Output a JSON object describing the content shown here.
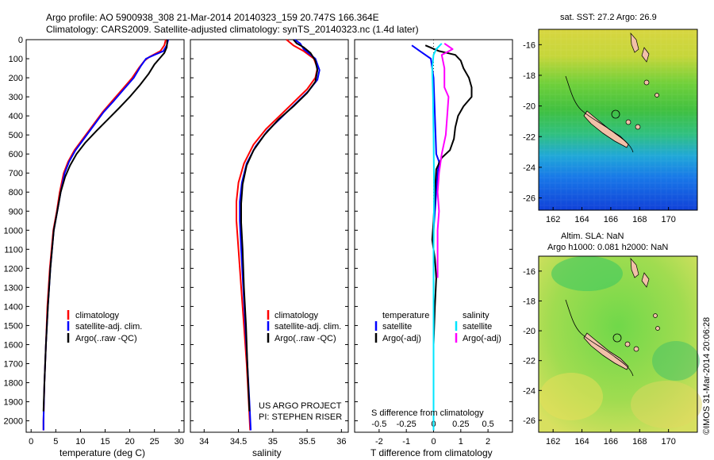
{
  "header": {
    "line1": "Argo profile: AO 5900938_308 21-Mar-2014 20140323_159 20.747S 166.364E",
    "line2": "Climatology: CARS2009. Satellite-adjusted climatology: synTS_20140323.nc (1.4d later)"
  },
  "colors": {
    "climatology": "#ff0000",
    "satellite": "#0000ff",
    "argo": "#000000",
    "cyan": "#00e5ff",
    "magenta": "#ff00ff"
  },
  "depth_ticks": [
    "0",
    "100",
    "200",
    "300",
    "400",
    "500",
    "600",
    "700",
    "800",
    "900",
    "1000",
    "1100",
    "1200",
    "1300",
    "1400",
    "1500",
    "1600",
    "1700",
    "1800",
    "1900",
    "2000"
  ],
  "chart_data": [
    {
      "type": "line",
      "title": "",
      "xlabel": "temperature (deg C)",
      "ylabel": "depth",
      "xlim": [
        -1,
        31
      ],
      "ylim": [
        2060,
        0
      ],
      "x_ticks": [
        "0",
        "5",
        "10",
        "15",
        "20",
        "25",
        "30"
      ],
      "legend": [
        "climatology",
        "satellite-adj. clim.",
        "Argo(..raw -QC)"
      ],
      "series": [
        {
          "name": "climatology",
          "color": "#ff0000",
          "points": [
            [
              27.3,
              0
            ],
            [
              27.0,
              30
            ],
            [
              26.2,
              60
            ],
            [
              24.0,
              90
            ],
            [
              23.0,
              110
            ],
            [
              21.8,
              150
            ],
            [
              20.5,
              200
            ],
            [
              18.5,
              260
            ],
            [
              16.5,
              320
            ],
            [
              14.5,
              380
            ],
            [
              12.5,
              450
            ],
            [
              10.5,
              520
            ],
            [
              8.8,
              580
            ],
            [
              7.5,
              640
            ],
            [
              6.6,
              700
            ],
            [
              5.8,
              800
            ],
            [
              5.2,
              900
            ],
            [
              4.5,
              1000
            ],
            [
              3.8,
              1200
            ],
            [
              3.3,
              1400
            ],
            [
              3.0,
              1600
            ],
            [
              2.7,
              1800
            ],
            [
              2.5,
              2000
            ],
            [
              2.5,
              2050
            ]
          ]
        },
        {
          "name": "satellite-adj. clim.",
          "color": "#0000ff",
          "points": [
            [
              27.8,
              0
            ],
            [
              27.5,
              30
            ],
            [
              26.8,
              60
            ],
            [
              25.0,
              80
            ],
            [
              23.3,
              100
            ],
            [
              22.2,
              140
            ],
            [
              20.8,
              200
            ],
            [
              18.8,
              260
            ],
            [
              16.8,
              320
            ],
            [
              14.7,
              380
            ],
            [
              12.7,
              450
            ],
            [
              10.7,
              520
            ],
            [
              9.0,
              580
            ],
            [
              7.7,
              640
            ],
            [
              6.8,
              700
            ],
            [
              6.0,
              800
            ],
            [
              5.3,
              900
            ],
            [
              4.6,
              1000
            ],
            [
              3.9,
              1200
            ],
            [
              3.4,
              1400
            ],
            [
              3.0,
              1600
            ],
            [
              2.7,
              1800
            ],
            [
              2.5,
              2000
            ],
            [
              2.5,
              2050
            ]
          ]
        },
        {
          "name": "Argo(..raw -QC)",
          "color": "#000000",
          "points": [
            [
              27.6,
              0
            ],
            [
              27.5,
              40
            ],
            [
              27.0,
              70
            ],
            [
              26.0,
              100
            ],
            [
              25.0,
              130
            ],
            [
              23.8,
              180
            ],
            [
              22.0,
              240
            ],
            [
              20.0,
              300
            ],
            [
              17.8,
              360
            ],
            [
              15.5,
              420
            ],
            [
              13.2,
              480
            ],
            [
              11.0,
              540
            ],
            [
              9.2,
              600
            ],
            [
              7.9,
              660
            ],
            [
              6.9,
              720
            ],
            [
              6.0,
              800
            ],
            [
              5.3,
              900
            ],
            [
              4.6,
              1000
            ],
            [
              3.9,
              1200
            ],
            [
              3.4,
              1400
            ],
            [
              3.0,
              1600
            ],
            [
              2.7,
              1800
            ],
            [
              2.5,
              1950
            ]
          ]
        }
      ]
    },
    {
      "type": "line",
      "title": "",
      "xlabel": "salinity",
      "ylabel": "depth",
      "xlim": [
        33.8,
        36.1
      ],
      "ylim": [
        2060,
        0
      ],
      "x_ticks": [
        "34",
        "34.5",
        "35",
        "35.5",
        "36"
      ],
      "legend": [
        "climatology",
        "satellite-adj. clim.",
        "Argo(..raw -QC)"
      ],
      "annotation": [
        "US ARGO PROJECT",
        "PI: STEPHEN RISER"
      ],
      "series": [
        {
          "name": "climatology",
          "color": "#ff0000",
          "points": [
            [
              35.2,
              0
            ],
            [
              35.3,
              30
            ],
            [
              35.45,
              60
            ],
            [
              35.6,
              100
            ],
            [
              35.65,
              150
            ],
            [
              35.62,
              200
            ],
            [
              35.5,
              260
            ],
            [
              35.3,
              330
            ],
            [
              35.1,
              400
            ],
            [
              34.9,
              470
            ],
            [
              34.72,
              550
            ],
            [
              34.58,
              650
            ],
            [
              34.5,
              750
            ],
            [
              34.47,
              850
            ],
            [
              34.47,
              950
            ],
            [
              34.5,
              1100
            ],
            [
              34.54,
              1300
            ],
            [
              34.58,
              1500
            ],
            [
              34.62,
              1700
            ],
            [
              34.65,
              1900
            ],
            [
              34.67,
              2050
            ]
          ]
        },
        {
          "name": "satellite-adj. clim.",
          "color": "#0000ff",
          "points": [
            [
              35.32,
              0
            ],
            [
              35.4,
              20
            ],
            [
              35.45,
              50
            ],
            [
              35.52,
              70
            ],
            [
              35.62,
              100
            ],
            [
              35.68,
              160
            ],
            [
              35.65,
              210
            ],
            [
              35.52,
              270
            ],
            [
              35.32,
              340
            ],
            [
              35.12,
              410
            ],
            [
              34.92,
              480
            ],
            [
              34.75,
              560
            ],
            [
              34.62,
              650
            ],
            [
              34.55,
              750
            ],
            [
              34.52,
              850
            ],
            [
              34.52,
              950
            ],
            [
              34.54,
              1100
            ],
            [
              34.57,
              1300
            ],
            [
              34.6,
              1500
            ],
            [
              34.63,
              1700
            ],
            [
              34.66,
              1900
            ],
            [
              34.68,
              2050
            ]
          ]
        },
        {
          "name": "Argo(..raw -QC)",
          "color": "#000000",
          "points": [
            [
              35.3,
              0
            ],
            [
              35.35,
              20
            ],
            [
              35.45,
              40
            ],
            [
              35.55,
              70
            ],
            [
              35.62,
              110
            ],
            [
              35.65,
              160
            ],
            [
              35.62,
              220
            ],
            [
              35.5,
              280
            ],
            [
              35.3,
              350
            ],
            [
              35.08,
              420
            ],
            [
              34.88,
              500
            ],
            [
              34.72,
              580
            ],
            [
              34.62,
              660
            ],
            [
              34.56,
              760
            ],
            [
              34.54,
              860
            ],
            [
              34.54,
              960
            ],
            [
              34.56,
              1100
            ],
            [
              34.58,
              1300
            ],
            [
              34.61,
              1500
            ],
            [
              34.63,
              1700
            ],
            [
              34.66,
              1950
            ]
          ]
        }
      ]
    },
    {
      "type": "line",
      "title": "",
      "xlabel": "T difference from climatology",
      "xlabel_top": "S difference from climatology",
      "ylabel": "depth",
      "xlim": [
        -2.9,
        2.9
      ],
      "ylim": [
        2060,
        0
      ],
      "x_ticks": [
        "-2",
        "-1",
        "0",
        "1",
        "2"
      ],
      "x_ticks_top": [
        "-0.5",
        "-0.25",
        "0",
        "0.25",
        "0.5"
      ],
      "legend_headers": [
        "temperature",
        "salinity"
      ],
      "legend": [
        "satellite",
        "Argo(-adj)",
        "satellite",
        "Argo(-adj)"
      ],
      "series": [
        {
          "name": "temperature satellite",
          "color": "#0000ff",
          "points": [
            [
              -0.8,
              30
            ],
            [
              -0.5,
              60
            ],
            [
              -0.1,
              100
            ],
            [
              0.0,
              200
            ],
            [
              0.05,
              400
            ],
            [
              0.1,
              600
            ],
            [
              0.2,
              640
            ],
            [
              0.15,
              700
            ],
            [
              0.1,
              800
            ],
            [
              0.05,
              900
            ],
            [
              0.0,
              1000
            ],
            [
              0.0,
              1200
            ],
            [
              0.0,
              1500
            ],
            [
              0.0,
              2050
            ]
          ]
        },
        {
          "name": "temperature Argo(-adj)",
          "color": "#000000",
          "points": [
            [
              -0.3,
              30
            ],
            [
              0.2,
              60
            ],
            [
              0.8,
              80
            ],
            [
              1.0,
              110
            ],
            [
              1.1,
              150
            ],
            [
              1.3,
              200
            ],
            [
              1.4,
              250
            ],
            [
              1.4,
              300
            ],
            [
              1.1,
              350
            ],
            [
              0.9,
              400
            ],
            [
              0.8,
              460
            ],
            [
              0.75,
              520
            ],
            [
              0.6,
              580
            ],
            [
              0.3,
              620
            ],
            [
              0.1,
              680
            ],
            [
              0.05,
              800
            ],
            [
              0.0,
              950
            ],
            [
              -0.05,
              1050
            ],
            [
              0.05,
              1150
            ],
            [
              0.1,
              1250
            ],
            [
              0.05,
              1400
            ],
            [
              0.0,
              1600
            ],
            [
              0.0,
              2000
            ]
          ]
        },
        {
          "name": "salinity satellite",
          "color": "#00e5ff",
          "points": [
            [
              0.3,
              20
            ],
            [
              0.1,
              50
            ],
            [
              0.0,
              80
            ],
            [
              -0.05,
              150
            ],
            [
              -0.02,
              300
            ],
            [
              0.0,
              500
            ],
            [
              0.02,
              800
            ],
            [
              0.0,
              1100
            ],
            [
              0.0,
              1500
            ],
            [
              0.0,
              2050
            ]
          ]
        },
        {
          "name": "salinity Argo(-adj)",
          "color": "#ff00ff",
          "points": [
            [
              0.4,
              20
            ],
            [
              0.7,
              50
            ],
            [
              0.3,
              80
            ],
            [
              0.4,
              150
            ],
            [
              0.4,
              250
            ],
            [
              0.55,
              300
            ],
            [
              0.5,
              400
            ],
            [
              0.45,
              500
            ],
            [
              0.3,
              600
            ],
            [
              0.2,
              700
            ],
            [
              0.15,
              800
            ],
            [
              0.2,
              900
            ],
            [
              0.15,
              1000
            ],
            [
              0.15,
              1150
            ],
            [
              0.15,
              1250
            ]
          ]
        }
      ]
    },
    {
      "type": "heatmap",
      "title": "sat. SST: 27.2  Argo: 26.9",
      "xlim": [
        161,
        172
      ],
      "ylim": [
        -26.8,
        -15
      ],
      "x_ticks": [
        "162",
        "164",
        "166",
        "168",
        "170"
      ],
      "y_ticks": [
        "-16",
        "-18",
        "-20",
        "-22",
        "-24",
        "-26"
      ]
    },
    {
      "type": "heatmap",
      "title": "Altim. SLA: NaN",
      "subtitle": "Argo h1000: 0.081 h2000: NaN",
      "side_label": "©IMOS 31-Mar-2014 20:06:28",
      "xlim": [
        161,
        172
      ],
      "ylim": [
        -26.8,
        -15
      ],
      "x_ticks": [
        "162",
        "164",
        "166",
        "168",
        "170"
      ],
      "y_ticks": [
        "-16",
        "-18",
        "-20",
        "-22",
        "-24",
        "-26"
      ]
    }
  ]
}
